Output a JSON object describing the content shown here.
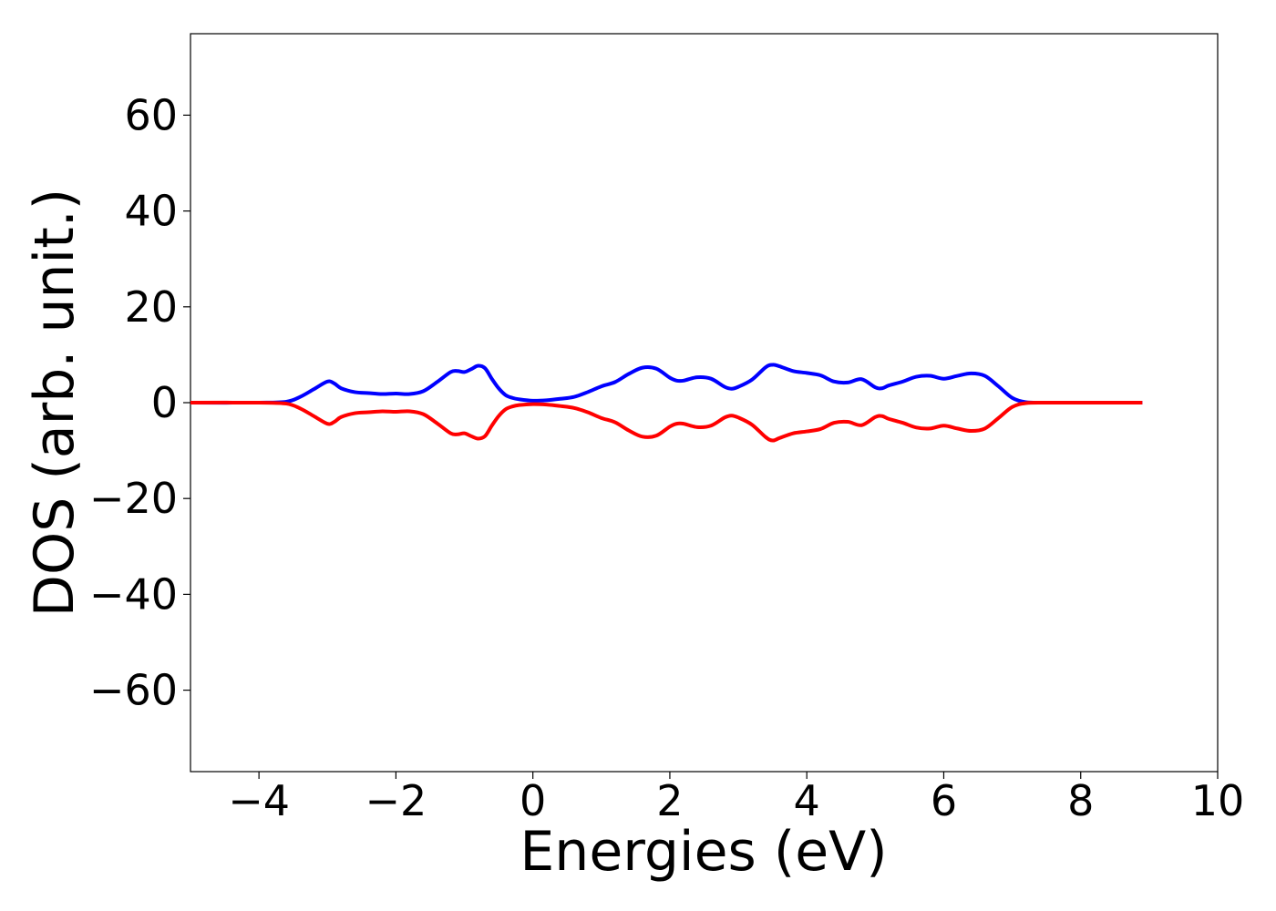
{
  "chart_data": {
    "type": "line",
    "title": "",
    "xlabel": "Energies (eV)",
    "ylabel": "DOS (arb. unit.)",
    "xlim": [
      -5,
      10
    ],
    "ylim": [
      -77,
      77
    ],
    "xticks": [
      -4,
      -2,
      0,
      2,
      4,
      6,
      8,
      10
    ],
    "yticks": [
      -60,
      -40,
      -20,
      0,
      20,
      40,
      60
    ],
    "xtick_labels": [
      "−4",
      "−2",
      "0",
      "2",
      "4",
      "6",
      "8",
      "10"
    ],
    "ytick_labels": [
      "−60",
      "−40",
      "−20",
      "0",
      "20",
      "40",
      "60"
    ],
    "grid": false,
    "legend": "none",
    "series": [
      {
        "color": "#0000ff",
        "x": [
          -5.0,
          -4.0,
          -3.6,
          -3.4,
          -3.2,
          -3.0,
          -2.9,
          -2.8,
          -2.6,
          -2.4,
          -2.2,
          -2.0,
          -1.8,
          -1.6,
          -1.4,
          -1.2,
          -1.1,
          -1.0,
          -0.9,
          -0.8,
          -0.7,
          -0.6,
          -0.5,
          -0.4,
          -0.3,
          -0.2,
          0.0,
          0.2,
          0.4,
          0.6,
          0.8,
          1.0,
          1.2,
          1.4,
          1.6,
          1.8,
          2.0,
          2.1,
          2.2,
          2.4,
          2.6,
          2.8,
          2.9,
          3.0,
          3.2,
          3.4,
          3.5,
          3.6,
          3.8,
          4.0,
          4.2,
          4.4,
          4.6,
          4.8,
          5.0,
          5.1,
          5.2,
          5.4,
          5.6,
          5.8,
          6.0,
          6.2,
          6.4,
          6.6,
          6.8,
          7.0,
          7.2,
          7.5,
          8.0,
          8.9
        ],
        "y": [
          0,
          0,
          0.2,
          1.2,
          2.8,
          4.4,
          4.0,
          3.0,
          2.2,
          2.0,
          1.8,
          1.9,
          1.8,
          2.4,
          4.3,
          6.4,
          6.6,
          6.4,
          7.0,
          7.7,
          7.2,
          5.0,
          3.0,
          1.6,
          1.0,
          0.7,
          0.4,
          0.5,
          0.8,
          1.2,
          2.2,
          3.4,
          4.3,
          6.0,
          7.3,
          7.1,
          5.2,
          4.6,
          4.6,
          5.3,
          5.0,
          3.3,
          2.9,
          3.3,
          4.8,
          7.4,
          7.9,
          7.6,
          6.6,
          6.2,
          5.7,
          4.4,
          4.2,
          4.9,
          3.2,
          3.0,
          3.6,
          4.4,
          5.4,
          5.6,
          5.0,
          5.6,
          6.1,
          5.6,
          3.4,
          1.0,
          0.1,
          0,
          0,
          0
        ]
      },
      {
        "color": "#ff0000",
        "x": [
          -5.0,
          -4.0,
          -3.6,
          -3.4,
          -3.2,
          -3.0,
          -2.9,
          -2.8,
          -2.6,
          -2.4,
          -2.2,
          -2.0,
          -1.8,
          -1.6,
          -1.4,
          -1.2,
          -1.1,
          -1.0,
          -0.9,
          -0.8,
          -0.7,
          -0.6,
          -0.5,
          -0.4,
          -0.3,
          -0.2,
          0.0,
          0.2,
          0.4,
          0.6,
          0.8,
          1.0,
          1.2,
          1.4,
          1.6,
          1.8,
          2.0,
          2.1,
          2.2,
          2.4,
          2.6,
          2.8,
          2.9,
          3.0,
          3.2,
          3.4,
          3.5,
          3.6,
          3.8,
          4.0,
          4.2,
          4.4,
          4.6,
          4.8,
          5.0,
          5.1,
          5.2,
          5.4,
          5.6,
          5.8,
          6.0,
          6.2,
          6.4,
          6.6,
          6.8,
          7.0,
          7.2,
          7.5,
          8.0,
          8.9
        ],
        "y": [
          0,
          0,
          -0.2,
          -1.2,
          -2.8,
          -4.4,
          -4.0,
          -3.0,
          -2.2,
          -2.0,
          -1.8,
          -1.9,
          -1.8,
          -2.4,
          -4.3,
          -6.4,
          -6.6,
          -6.4,
          -7.0,
          -7.5,
          -7.0,
          -4.8,
          -2.8,
          -1.4,
          -0.8,
          -0.5,
          -0.3,
          -0.4,
          -0.7,
          -1.1,
          -2.0,
          -3.2,
          -4.1,
          -5.8,
          -7.1,
          -6.9,
          -5.0,
          -4.4,
          -4.4,
          -5.1,
          -4.8,
          -3.1,
          -2.7,
          -3.1,
          -4.6,
          -7.2,
          -7.9,
          -7.4,
          -6.4,
          -6.0,
          -5.5,
          -4.2,
          -4.0,
          -4.7,
          -3.0,
          -2.8,
          -3.4,
          -4.2,
          -5.2,
          -5.4,
          -4.8,
          -5.4,
          -5.9,
          -5.4,
          -3.2,
          -0.9,
          -0.1,
          0,
          0,
          0
        ]
      }
    ]
  }
}
